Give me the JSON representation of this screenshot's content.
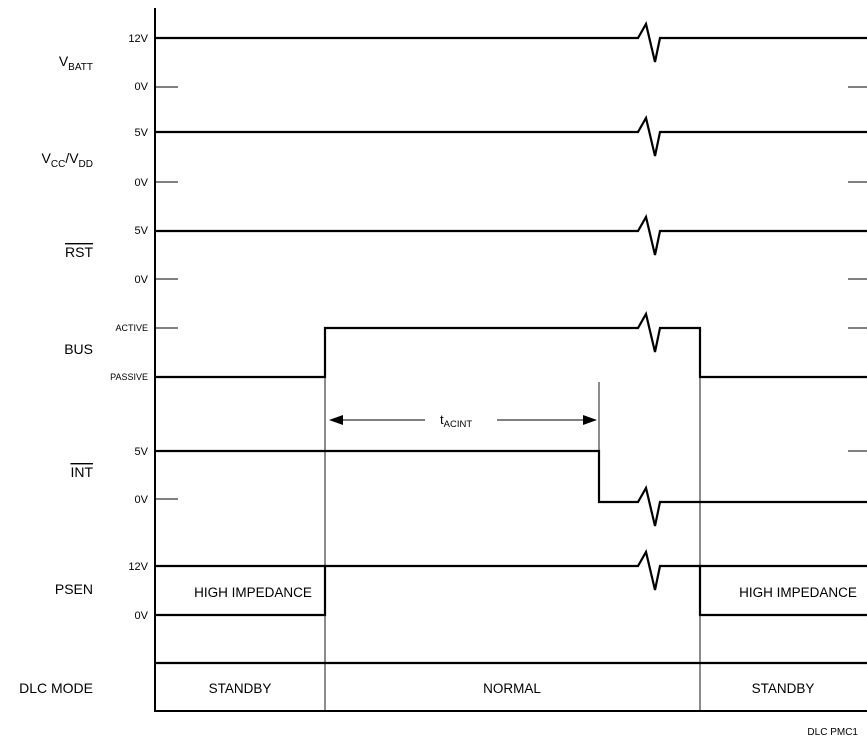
{
  "signals": {
    "vbatt": {
      "main": "V",
      "sub": "BATT",
      "high": "12V",
      "low": "0V"
    },
    "vccvdd": {
      "v1": "V",
      "s1": "CC",
      "slash": "/V",
      "s2": "DD",
      "high": "5V",
      "low": "0V"
    },
    "rst": {
      "name": "RST",
      "high": "5V",
      "low": "0V"
    },
    "bus": {
      "name": "BUS",
      "high": "ACTIVE",
      "low": "PASSIVE"
    },
    "int": {
      "name": "INT",
      "high": "5V",
      "low": "0V"
    },
    "psen": {
      "name": "PSEN",
      "high": "12V",
      "low": "0V"
    }
  },
  "timing": {
    "main": "t",
    "sub": "ACINT"
  },
  "high_impedance_left": "HIGH IMPEDANCE",
  "high_impedance_right": "HIGH IMPEDANCE",
  "dlc_mode": {
    "label": "DLC MODE",
    "modes": [
      "STANDBY",
      "NORMAL",
      "STANDBY"
    ]
  },
  "figure_id": "DLC PMC1"
}
